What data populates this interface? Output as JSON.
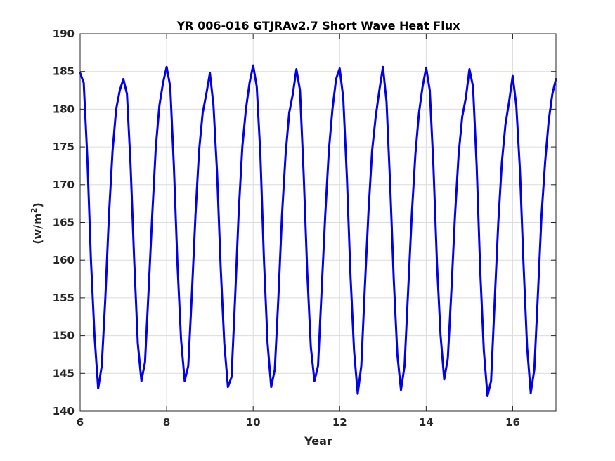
{
  "chart_data": {
    "type": "line",
    "title": "YR 006-016 GTJRAv2.7 Short Wave Heat Flux",
    "xlabel": "Year",
    "ylabel_main": "(w/m",
    "ylabel_sup": "2",
    "ylabel_end": ")",
    "xlim": [
      6,
      17
    ],
    "ylim": [
      140,
      190
    ],
    "xticks": [
      6,
      8,
      10,
      12,
      14,
      16
    ],
    "yticks": [
      140,
      145,
      150,
      155,
      160,
      165,
      170,
      175,
      180,
      185,
      190
    ],
    "grid": true,
    "series": [
      {
        "color": "#0000ee",
        "x": [
          6.0,
          6.083,
          6.167,
          6.25,
          6.333,
          6.417,
          6.5,
          6.583,
          6.667,
          6.75,
          6.833,
          6.917,
          7.0,
          7.083,
          7.167,
          7.25,
          7.333,
          7.417,
          7.5,
          7.583,
          7.667,
          7.75,
          7.833,
          7.917,
          8.0,
          8.083,
          8.167,
          8.25,
          8.333,
          8.417,
          8.5,
          8.583,
          8.667,
          8.75,
          8.833,
          8.917,
          9.0,
          9.083,
          9.167,
          9.25,
          9.333,
          9.417,
          9.5,
          9.583,
          9.667,
          9.75,
          9.833,
          9.917,
          10.0,
          10.083,
          10.167,
          10.25,
          10.333,
          10.417,
          10.5,
          10.583,
          10.667,
          10.75,
          10.833,
          10.917,
          11.0,
          11.083,
          11.167,
          11.25,
          11.333,
          11.417,
          11.5,
          11.583,
          11.667,
          11.75,
          11.833,
          11.917,
          12.0,
          12.083,
          12.167,
          12.25,
          12.333,
          12.417,
          12.5,
          12.583,
          12.667,
          12.75,
          12.833,
          12.917,
          13.0,
          13.083,
          13.167,
          13.25,
          13.333,
          13.417,
          13.5,
          13.583,
          13.667,
          13.75,
          13.833,
          13.917,
          14.0,
          14.083,
          14.167,
          14.25,
          14.333,
          14.417,
          14.5,
          14.583,
          14.667,
          14.75,
          14.833,
          14.917,
          15.0,
          15.083,
          15.167,
          15.25,
          15.333,
          15.417,
          15.5,
          15.583,
          15.667,
          15.75,
          15.833,
          15.917,
          16.0,
          16.083,
          16.167,
          16.25,
          16.333,
          16.417,
          16.5,
          16.583,
          16.667,
          16.75,
          16.833,
          16.917,
          17.0
        ],
        "y": [
          184.8,
          183.5,
          173.5,
          160.0,
          150.0,
          143.0,
          146.0,
          155.0,
          166.0,
          174.5,
          180.0,
          182.5,
          184.0,
          182.0,
          172.5,
          160.0,
          149.0,
          144.0,
          146.5,
          156.0,
          166.0,
          175.0,
          180.5,
          183.5,
          185.6,
          183.0,
          172.5,
          159.5,
          149.5,
          144.0,
          146.0,
          155.5,
          166.0,
          174.5,
          179.5,
          182.0,
          184.8,
          180.5,
          171.5,
          159.0,
          149.0,
          143.2,
          144.5,
          155.0,
          166.5,
          175.0,
          180.0,
          183.5,
          185.8,
          183.0,
          174.0,
          160.0,
          149.0,
          143.2,
          145.5,
          155.0,
          166.0,
          174.0,
          179.5,
          182.0,
          185.3,
          182.5,
          171.5,
          158.5,
          148.5,
          144.0,
          146.0,
          156.0,
          166.0,
          174.5,
          180.0,
          184.0,
          185.4,
          181.5,
          171.0,
          158.0,
          148.0,
          142.3,
          146.0,
          156.5,
          166.5,
          174.5,
          179.0,
          182.5,
          185.6,
          181.0,
          170.0,
          157.5,
          147.5,
          142.8,
          146.0,
          156.0,
          166.0,
          174.0,
          179.5,
          183.0,
          185.5,
          182.5,
          172.5,
          159.5,
          150.0,
          144.2,
          147.0,
          156.0,
          166.0,
          174.0,
          179.0,
          181.5,
          185.3,
          183.0,
          172.5,
          158.5,
          148.0,
          142.0,
          144.0,
          154.5,
          165.0,
          173.0,
          178.0,
          181.0,
          184.4,
          180.5,
          172.0,
          159.5,
          148.5,
          142.4,
          145.5,
          155.5,
          166.0,
          173.0,
          178.5,
          182.0,
          184.0
        ]
      }
    ]
  }
}
